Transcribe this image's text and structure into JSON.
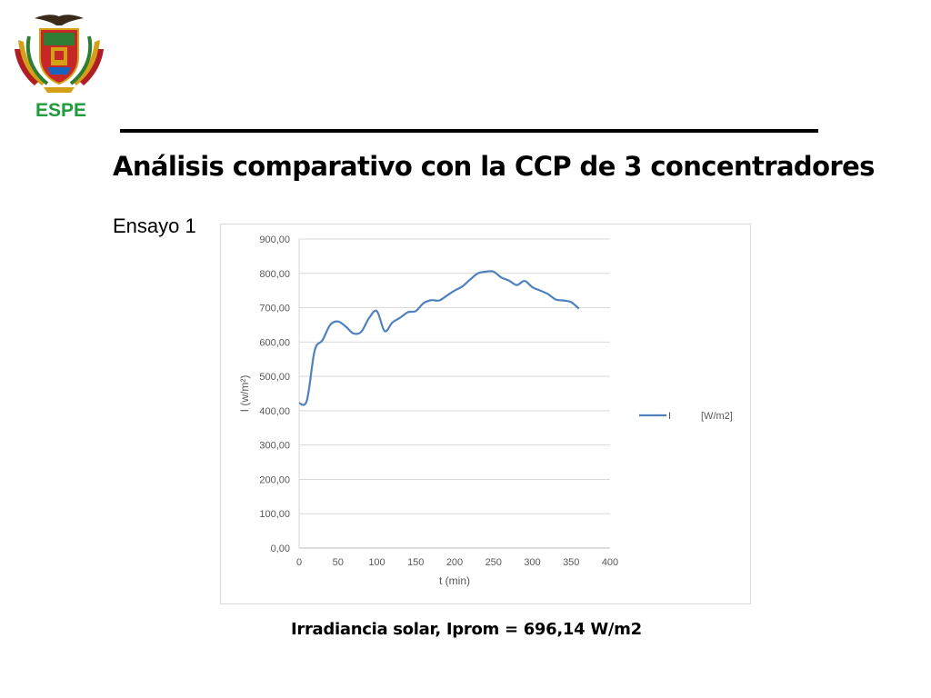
{
  "header": {
    "logo_text": "ESPE",
    "title": "Análisis comparativo con la CCP de 3 concentradores"
  },
  "test_label": "Ensayo 1",
  "caption": "Irradiancia solar, Iprom = 696,14 W/m2",
  "colors": {
    "series": "#4f81bd",
    "grid": "#d9d9d9",
    "logo_text": "#1f9b3a"
  },
  "chart_data": {
    "type": "line",
    "title": "",
    "xlabel": "t (min)",
    "ylabel": "I (w/m²)",
    "xlim": [
      0,
      400
    ],
    "ylim": [
      0,
      900
    ],
    "x_ticks": [
      0,
      50,
      100,
      150,
      200,
      250,
      300,
      350,
      400
    ],
    "y_ticks": [
      0,
      100,
      200,
      300,
      400,
      500,
      600,
      700,
      800,
      900
    ],
    "x_tick_labels": [
      "0",
      "50",
      "100",
      "150",
      "200",
      "250",
      "300",
      "350",
      "400"
    ],
    "y_tick_labels": [
      "0,00",
      "100,00",
      "200,00",
      "300,00",
      "400,00",
      "500,00",
      "600,00",
      "700,00",
      "800,00",
      "900,00"
    ],
    "grid": true,
    "legend": "right",
    "series": [
      {
        "name": "I [W/m2]",
        "legend_label": "I",
        "legend_unit": "[W/m2]",
        "x": [
          0,
          10,
          20,
          30,
          40,
          50,
          60,
          70,
          80,
          90,
          100,
          110,
          120,
          130,
          140,
          150,
          160,
          170,
          180,
          190,
          200,
          210,
          220,
          230,
          240,
          250,
          260,
          270,
          280,
          290,
          300,
          310,
          320,
          330,
          340,
          350,
          360
        ],
        "values": [
          422,
          430,
          575,
          605,
          650,
          660,
          645,
          625,
          630,
          670,
          690,
          632,
          657,
          671,
          687,
          690,
          713,
          722,
          721,
          735,
          750,
          762,
          782,
          800,
          805,
          805,
          788,
          779,
          766,
          778,
          760,
          750,
          740,
          724,
          721,
          716,
          697
        ]
      }
    ]
  }
}
